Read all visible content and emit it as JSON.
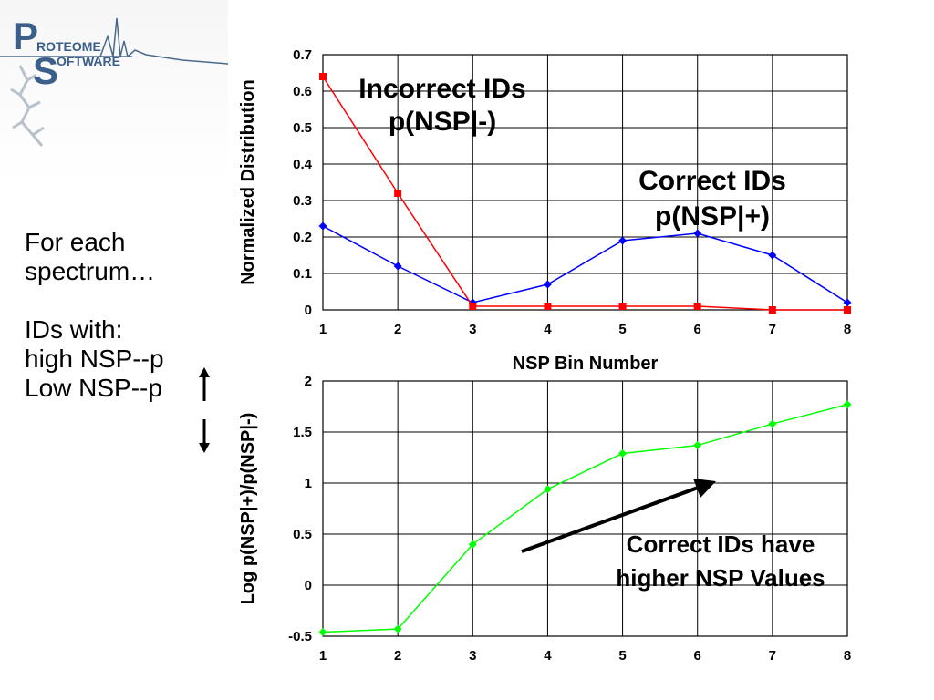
{
  "logo": {
    "text_line1": "ROTEOME",
    "text_line2": "OFTWARE",
    "letter_p": "P",
    "letter_s": "S"
  },
  "sidebar": {
    "line1": "For each",
    "line2": "spectrum…",
    "line3": "IDs with:",
    "line4": "high NSP--p",
    "line5": "Low NSP--p"
  },
  "colors": {
    "correct": "#0000ff",
    "incorrect": "#ff0000",
    "log_ratio": "#00ff00",
    "grid": "#000000",
    "arrow": "#000000"
  },
  "chart_data": [
    {
      "type": "line",
      "x": [
        1,
        2,
        3,
        4,
        5,
        6,
        7,
        8
      ],
      "xlabel": "NSP Bin Number",
      "ylabel": "Normalized Distribution",
      "ylim": [
        0,
        0.7
      ],
      "yticks": [
        "0",
        "0.1",
        "0.2",
        "0.3",
        "0.4",
        "0.5",
        "0.6",
        "0.7"
      ],
      "xticks": [
        "1",
        "2",
        "3",
        "4",
        "5",
        "6",
        "7",
        "8"
      ],
      "grid": true,
      "series": [
        {
          "name": "Correct IDs p(NSP|+)",
          "color": "#0000ff",
          "marker": "diamond",
          "values": [
            0.23,
            0.12,
            0.02,
            0.07,
            0.19,
            0.21,
            0.15,
            0.02
          ]
        },
        {
          "name": "Incorrect IDs p(NSP|-)",
          "color": "#ff0000",
          "marker": "square",
          "values": [
            0.64,
            0.32,
            0.01,
            0.01,
            0.01,
            0.01,
            0.0,
            0.0
          ]
        }
      ],
      "annotations": [
        {
          "line1": "Incorrect IDs",
          "line2": "p(NSP|-)"
        },
        {
          "line1": "Correct IDs",
          "line2": "p(NSP|+)"
        }
      ]
    },
    {
      "type": "line",
      "x": [
        1,
        2,
        3,
        4,
        5,
        6,
        7,
        8
      ],
      "xlabel": "",
      "ylabel": "Log p(NSP|+)/p(NSP|-)",
      "ylim": [
        -0.5,
        2
      ],
      "yticks": [
        "-0.5",
        "0",
        "0.5",
        "1",
        "1.5",
        "2"
      ],
      "xticks": [
        "1",
        "2",
        "3",
        "4",
        "5",
        "6",
        "7",
        "8"
      ],
      "grid": true,
      "series": [
        {
          "color": "#00ff00",
          "marker": "diamond",
          "values": [
            -0.46,
            -0.43,
            0.4,
            0.94,
            1.29,
            1.37,
            1.58,
            1.77
          ]
        }
      ],
      "annotations": [
        {
          "line1": "Correct IDs have",
          "line2": "higher NSP Values"
        }
      ]
    }
  ]
}
